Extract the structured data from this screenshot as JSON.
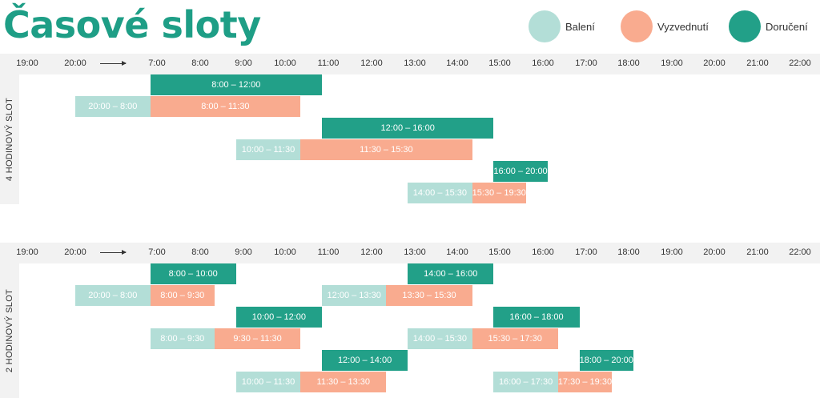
{
  "title": "Časové sloty",
  "legend": [
    {
      "label": "Balení",
      "color": "#b3ded7"
    },
    {
      "label": "Vyzvednutí",
      "color": "#f9ab8f"
    },
    {
      "label": "Doručení",
      "color": "#22a088"
    }
  ],
  "chart_data": [
    {
      "type": "bar",
      "title": "",
      "ylabel": "4 HODINOVÝ SLOT",
      "ticks": [
        "19:00",
        "20:00",
        "7:00",
        "8:00",
        "9:00",
        "10:00",
        "11:00",
        "12:00",
        "13:00",
        "14:00",
        "15:00",
        "16:00",
        "17:00",
        "18:00",
        "19:00",
        "20:00",
        "21:00",
        "22:00"
      ],
      "rows": [
        [
          {
            "series": "Doručení",
            "start": "8:00",
            "end": "12:00",
            "label": "8:00 – 12:00"
          }
        ],
        [
          {
            "series": "Balení",
            "start": "20:00",
            "end": "8:00",
            "label": "20:00 – 8:00"
          },
          {
            "series": "Vyzvednutí",
            "start": "8:00",
            "end": "11:30",
            "label": "8:00 – 11:30"
          }
        ],
        [
          {
            "series": "Doručení",
            "start": "12:00",
            "end": "16:00",
            "label": "12:00 – 16:00"
          }
        ],
        [
          {
            "series": "Balení",
            "start": "10:00",
            "end": "11:30",
            "label": "10:00 – 11:30"
          },
          {
            "series": "Vyzvednutí",
            "start": "11:30",
            "end": "15:30",
            "label": "11:30 – 15:30"
          }
        ],
        [
          {
            "series": "Doručení",
            "start": "16:00",
            "end": "20:00",
            "label": "16:00 – 20:00"
          }
        ],
        [
          {
            "series": "Balení",
            "start": "14:00",
            "end": "15:30",
            "label": "14:00 – 15:30"
          },
          {
            "series": "Vyzvednutí",
            "start": "15:30",
            "end": "19:30",
            "label": "15:30 – 19:30"
          }
        ]
      ]
    },
    {
      "type": "bar",
      "title": "",
      "ylabel": "2 HODINOVÝ SLOT",
      "ticks": [
        "19:00",
        "20:00",
        "7:00",
        "8:00",
        "9:00",
        "10:00",
        "11:00",
        "12:00",
        "13:00",
        "14:00",
        "15:00",
        "16:00",
        "17:00",
        "18:00",
        "19:00",
        "20:00",
        "21:00",
        "22:00"
      ],
      "rows": [
        [
          {
            "series": "Doručení",
            "start": "8:00",
            "end": "10:00",
            "label": "8:00 – 10:00"
          },
          {
            "series": "Doručení",
            "start": "14:00",
            "end": "16:00",
            "label": "14:00 – 16:00"
          }
        ],
        [
          {
            "series": "Balení",
            "start": "20:00",
            "end": "8:00",
            "label": "20:00 – 8:00"
          },
          {
            "series": "Vyzvednutí",
            "start": "8:00",
            "end": "9:30",
            "label": "8:00 – 9:30"
          },
          {
            "series": "Balení",
            "start": "12:00",
            "end": "13:30",
            "label": "12:00 – 13:30"
          },
          {
            "series": "Vyzvednutí",
            "start": "13:30",
            "end": "15:30",
            "label": "13:30 – 15:30"
          }
        ],
        [
          {
            "series": "Doručení",
            "start": "10:00",
            "end": "12:00",
            "label": "10:00 – 12:00"
          },
          {
            "series": "Doručení",
            "start": "16:00",
            "end": "18:00",
            "label": "16:00 – 18:00"
          }
        ],
        [
          {
            "series": "Balení",
            "start": "8:00",
            "end": "9:30",
            "label": "8:00 – 9:30"
          },
          {
            "series": "Vyzvednutí",
            "start": "9:30",
            "end": "11:30",
            "label": "9:30 – 11:30"
          },
          {
            "series": "Balení",
            "start": "14:00",
            "end": "15:30",
            "label": "14:00 – 15:30"
          },
          {
            "series": "Vyzvednutí",
            "start": "15:30",
            "end": "17:30",
            "label": "15:30 – 17:30"
          }
        ],
        [
          {
            "series": "Doručení",
            "start": "12:00",
            "end": "14:00",
            "label": "12:00 – 14:00"
          },
          {
            "series": "Doručení",
            "start": "18:00",
            "end": "20:00",
            "label": "18:00 – 20:00"
          }
        ],
        [
          {
            "series": "Balení",
            "start": "10:00",
            "end": "11:30",
            "label": "10:00 – 11:30"
          },
          {
            "series": "Vyzvednutí",
            "start": "11:30",
            "end": "13:30",
            "label": "11:30 – 13:30"
          },
          {
            "series": "Balení",
            "start": "16:00",
            "end": "17:30",
            "label": "16:00 – 17:30"
          },
          {
            "series": "Vyzvednutí",
            "start": "17:30",
            "end": "19:30",
            "label": "17:30 – 19:30"
          }
        ]
      ]
    }
  ]
}
